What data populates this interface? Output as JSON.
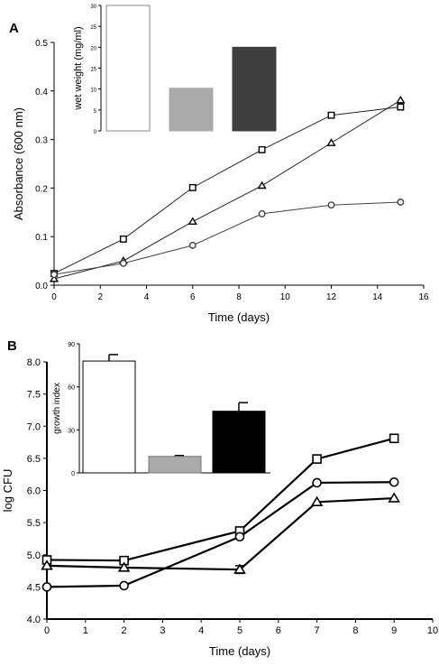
{
  "panels": [
    {
      "label": "A"
    },
    {
      "label": "B"
    }
  ],
  "chart_data": [
    {
      "id": "A-main",
      "type": "line",
      "xlabel": "Time (days)",
      "ylabel": "Absorbance (600 nm)",
      "xlim": [
        0,
        16
      ],
      "ylim": [
        0,
        0.5
      ],
      "xticks": [
        0,
        2,
        4,
        6,
        8,
        10,
        12,
        14,
        16
      ],
      "yticks": [
        0.0,
        0.1,
        0.2,
        0.3,
        0.4,
        0.5
      ],
      "ytick_labels": [
        "0.0",
        "0.1",
        "0.2",
        "0.3",
        "0.4",
        "0.5"
      ],
      "grid": false,
      "series": [
        {
          "marker": "square",
          "x": [
            0,
            3,
            6,
            9,
            12,
            15
          ],
          "y": [
            0.024,
            0.095,
            0.201,
            0.279,
            0.35,
            0.367
          ]
        },
        {
          "marker": "triangle",
          "x": [
            0,
            3,
            6,
            9,
            12,
            15
          ],
          "y": [
            0.013,
            0.05,
            0.131,
            0.205,
            0.293,
            0.381
          ]
        },
        {
          "marker": "circle",
          "x": [
            0,
            3,
            6,
            9,
            12,
            15
          ],
          "y": [
            0.022,
            0.045,
            0.082,
            0.147,
            0.165,
            0.171
          ]
        }
      ]
    },
    {
      "id": "A-inset",
      "type": "bar",
      "ylabel": "wet weight (mg/ml)",
      "ylim": [
        0,
        30
      ],
      "yticks": [
        0,
        5,
        10,
        15,
        20,
        25,
        30
      ],
      "values": [
        30,
        10.2,
        20
      ],
      "colors": [
        "#ffffff",
        "#aaaaaa",
        "#3f3f3f"
      ]
    },
    {
      "id": "B-main",
      "type": "line",
      "xlabel": "Time (days)",
      "ylabel": "log CFU",
      "xlim": [
        0,
        10
      ],
      "ylim": [
        4.0,
        8.0
      ],
      "xticks": [
        0,
        1,
        2,
        3,
        4,
        5,
        6,
        7,
        8,
        9,
        10
      ],
      "yticks": [
        4.0,
        4.5,
        5.0,
        5.5,
        6.0,
        6.5,
        7.0,
        7.5,
        8.0
      ],
      "ytick_labels": [
        "4.0",
        "4.5",
        "5.0",
        "5.5",
        "6.0",
        "6.5",
        "7.0",
        "7.5",
        "8.0"
      ],
      "grid": false,
      "series": [
        {
          "marker": "square",
          "x": [
            0,
            2,
            5,
            7,
            9
          ],
          "y": [
            4.92,
            4.91,
            5.37,
            6.49,
            6.81
          ]
        },
        {
          "marker": "circle",
          "x": [
            0,
            2,
            5,
            7,
            9
          ],
          "y": [
            4.5,
            4.52,
            5.28,
            6.12,
            6.13
          ]
        },
        {
          "marker": "triangle",
          "x": [
            0,
            2,
            5,
            7,
            9
          ],
          "y": [
            4.83,
            4.8,
            4.77,
            5.82,
            5.88
          ]
        }
      ],
      "error_bars": [
        {
          "series": 2,
          "x": 5,
          "err": 0.06
        }
      ]
    },
    {
      "id": "B-inset",
      "type": "bar",
      "ylabel": "growth index",
      "ylim": [
        0,
        90
      ],
      "yticks": [
        0,
        30,
        60,
        90
      ],
      "values": [
        78,
        11.5,
        43
      ],
      "errors": [
        4.5,
        0.6,
        6
      ],
      "colors": [
        "#ffffff",
        "#aaaaaa",
        "#000000"
      ]
    }
  ]
}
